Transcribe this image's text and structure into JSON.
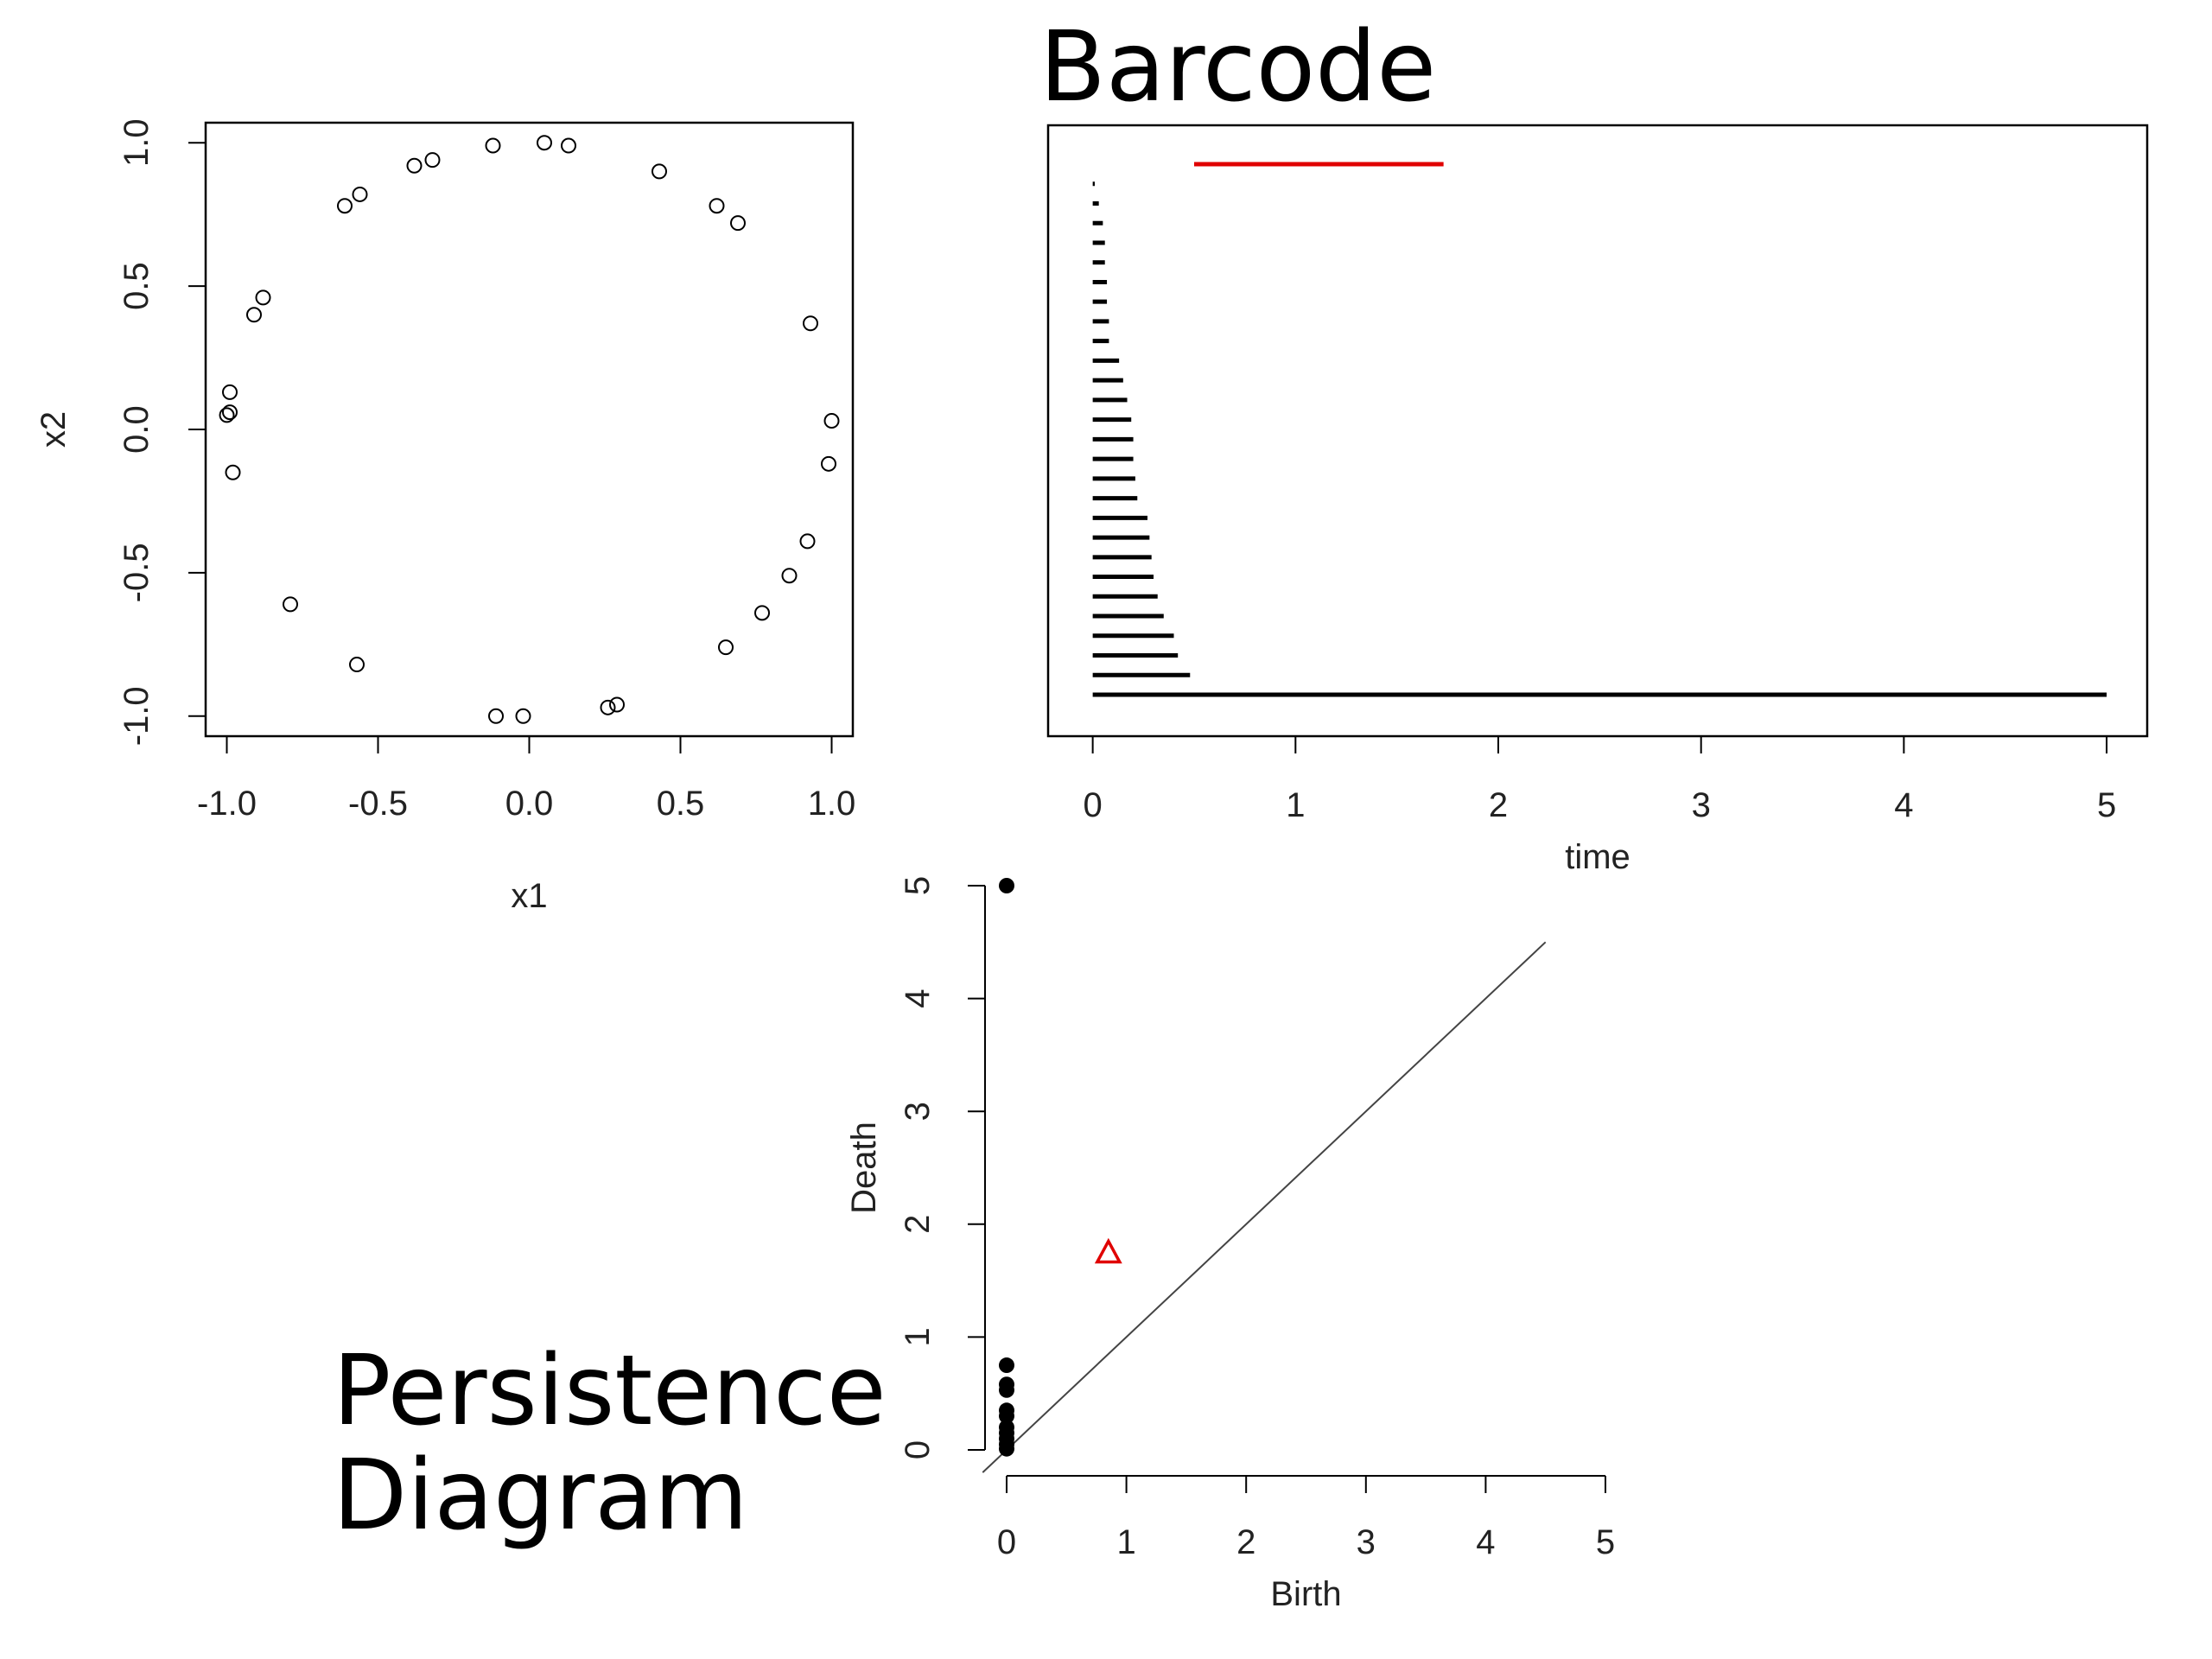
{
  "headings": {
    "barcode": "Barcode",
    "persistence_line1": "Persistence",
    "persistence_line2": "Diagram"
  },
  "colors": {
    "ink": "#000000",
    "highlight": "#e00000",
    "diagonal": "#444444"
  },
  "chart_data": [
    {
      "type": "scatter",
      "xlabel": "x1",
      "ylabel": "x2",
      "xlim": [
        -1.07,
        1.07
      ],
      "ylim": [
        -1.07,
        1.07
      ],
      "xticks": [
        "-1.0",
        "-0.5",
        "0.0",
        "0.5",
        "1.0"
      ],
      "yticks": [
        "-1.0",
        "-0.5",
        "0.0",
        "0.5",
        "1.0"
      ],
      "marker": "open-circle",
      "points": [
        [
          -0.99,
          0.13
        ],
        [
          -1.0,
          0.05
        ],
        [
          -0.99,
          0.06
        ],
        [
          -0.98,
          -0.15
        ],
        [
          -0.91,
          0.4
        ],
        [
          -0.88,
          0.46
        ],
        [
          -0.79,
          -0.61
        ],
        [
          -0.61,
          0.78
        ],
        [
          -0.56,
          0.82
        ],
        [
          -0.57,
          -0.82
        ],
        [
          -0.38,
          0.92
        ],
        [
          -0.32,
          0.94
        ],
        [
          -0.12,
          0.99
        ],
        [
          0.05,
          1.0
        ],
        [
          0.13,
          0.99
        ],
        [
          -0.11,
          -1.0
        ],
        [
          -0.02,
          -1.0
        ],
        [
          0.26,
          -0.97
        ],
        [
          0.29,
          -0.96
        ],
        [
          0.43,
          0.9
        ],
        [
          0.62,
          0.78
        ],
        [
          0.69,
          0.72
        ],
        [
          0.65,
          -0.76
        ],
        [
          0.77,
          -0.64
        ],
        [
          0.86,
          -0.51
        ],
        [
          0.92,
          -0.39
        ],
        [
          0.93,
          0.37
        ],
        [
          1.0,
          0.03
        ],
        [
          0.99,
          -0.12
        ]
      ]
    },
    {
      "type": "barcode",
      "xlabel": "time",
      "xlim": [
        -0.22,
        5.2
      ],
      "xticks": [
        "0",
        "1",
        "2",
        "3",
        "4",
        "5"
      ],
      "bars": [
        {
          "birth": 0.5,
          "death": 1.73,
          "dimension": 1
        },
        {
          "birth": 0,
          "death": 0.01,
          "dimension": 0
        },
        {
          "birth": 0,
          "death": 0.03,
          "dimension": 0
        },
        {
          "birth": 0,
          "death": 0.05,
          "dimension": 0
        },
        {
          "birth": 0,
          "death": 0.06,
          "dimension": 0
        },
        {
          "birth": 0,
          "death": 0.06,
          "dimension": 0
        },
        {
          "birth": 0,
          "death": 0.07,
          "dimension": 0
        },
        {
          "birth": 0,
          "death": 0.07,
          "dimension": 0
        },
        {
          "birth": 0,
          "death": 0.08,
          "dimension": 0
        },
        {
          "birth": 0,
          "death": 0.08,
          "dimension": 0
        },
        {
          "birth": 0,
          "death": 0.13,
          "dimension": 0
        },
        {
          "birth": 0,
          "death": 0.15,
          "dimension": 0
        },
        {
          "birth": 0,
          "death": 0.17,
          "dimension": 0
        },
        {
          "birth": 0,
          "death": 0.19,
          "dimension": 0
        },
        {
          "birth": 0,
          "death": 0.2,
          "dimension": 0
        },
        {
          "birth": 0,
          "death": 0.2,
          "dimension": 0
        },
        {
          "birth": 0,
          "death": 0.21,
          "dimension": 0
        },
        {
          "birth": 0,
          "death": 0.22,
          "dimension": 0
        },
        {
          "birth": 0,
          "death": 0.27,
          "dimension": 0
        },
        {
          "birth": 0,
          "death": 0.28,
          "dimension": 0
        },
        {
          "birth": 0,
          "death": 0.29,
          "dimension": 0
        },
        {
          "birth": 0,
          "death": 0.3,
          "dimension": 0
        },
        {
          "birth": 0,
          "death": 0.32,
          "dimension": 0
        },
        {
          "birth": 0,
          "death": 0.35,
          "dimension": 0
        },
        {
          "birth": 0,
          "death": 0.4,
          "dimension": 0
        },
        {
          "birth": 0,
          "death": 0.42,
          "dimension": 0
        },
        {
          "birth": 0,
          "death": 0.48,
          "dimension": 0
        },
        {
          "birth": 0,
          "death": 5.0,
          "dimension": 0
        }
      ]
    },
    {
      "type": "scatter",
      "xlabel": "Birth",
      "ylabel": "Death",
      "xlim": [
        -0.2,
        5
      ],
      "ylim": [
        -0.2,
        5
      ],
      "xticks": [
        "0",
        "1",
        "2",
        "3",
        "4",
        "5"
      ],
      "yticks": [
        "0",
        "1",
        "2",
        "3",
        "4",
        "5"
      ],
      "diagonal": true,
      "points": [
        {
          "birth": 0,
          "death": 5.0,
          "dimension": 0
        },
        {
          "birth": 0,
          "death": 0.75,
          "dimension": 0
        },
        {
          "birth": 0,
          "death": 0.58,
          "dimension": 0
        },
        {
          "birth": 0,
          "death": 0.53,
          "dimension": 0
        },
        {
          "birth": 0,
          "death": 0.35,
          "dimension": 0
        },
        {
          "birth": 0,
          "death": 0.3,
          "dimension": 0
        },
        {
          "birth": 0,
          "death": 0.2,
          "dimension": 0
        },
        {
          "birth": 0,
          "death": 0.15,
          "dimension": 0
        },
        {
          "birth": 0,
          "death": 0.1,
          "dimension": 0
        },
        {
          "birth": 0,
          "death": 0.05,
          "dimension": 0
        },
        {
          "birth": 0,
          "death": 0.01,
          "dimension": 0
        },
        {
          "birth": 0.85,
          "death": 1.75,
          "dimension": 1
        }
      ]
    }
  ]
}
